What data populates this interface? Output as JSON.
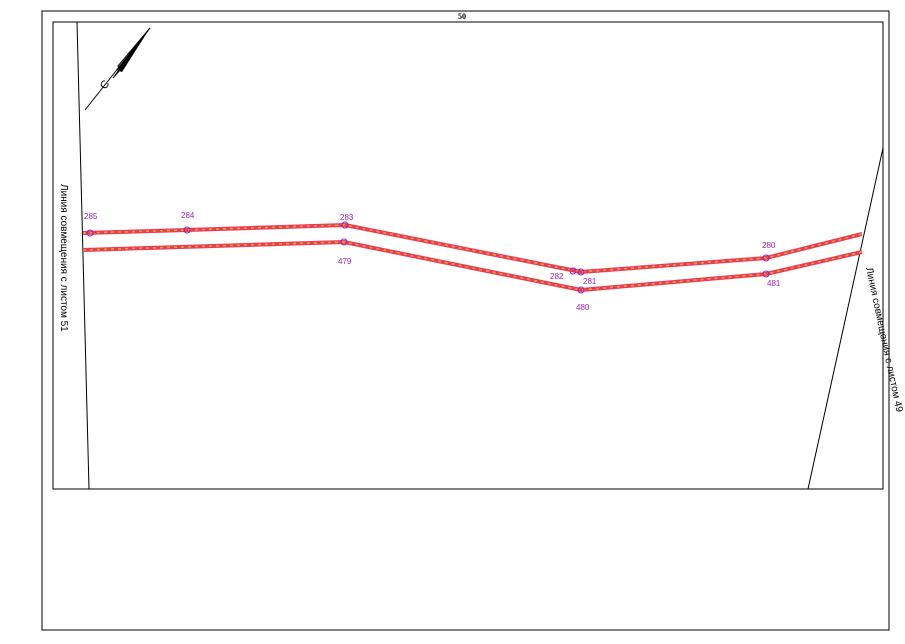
{
  "sheet": {
    "number": "50",
    "north_label": "С",
    "points": {
      "top": [
        "285",
        "284",
        "283",
        "282",
        "281",
        "280"
      ],
      "bottom": [
        "479",
        "480",
        "481"
      ]
    },
    "join_lines": [
      "Линия совмещения с листом 51",
      "Линия совмещения с листом 49"
    ]
  }
}
